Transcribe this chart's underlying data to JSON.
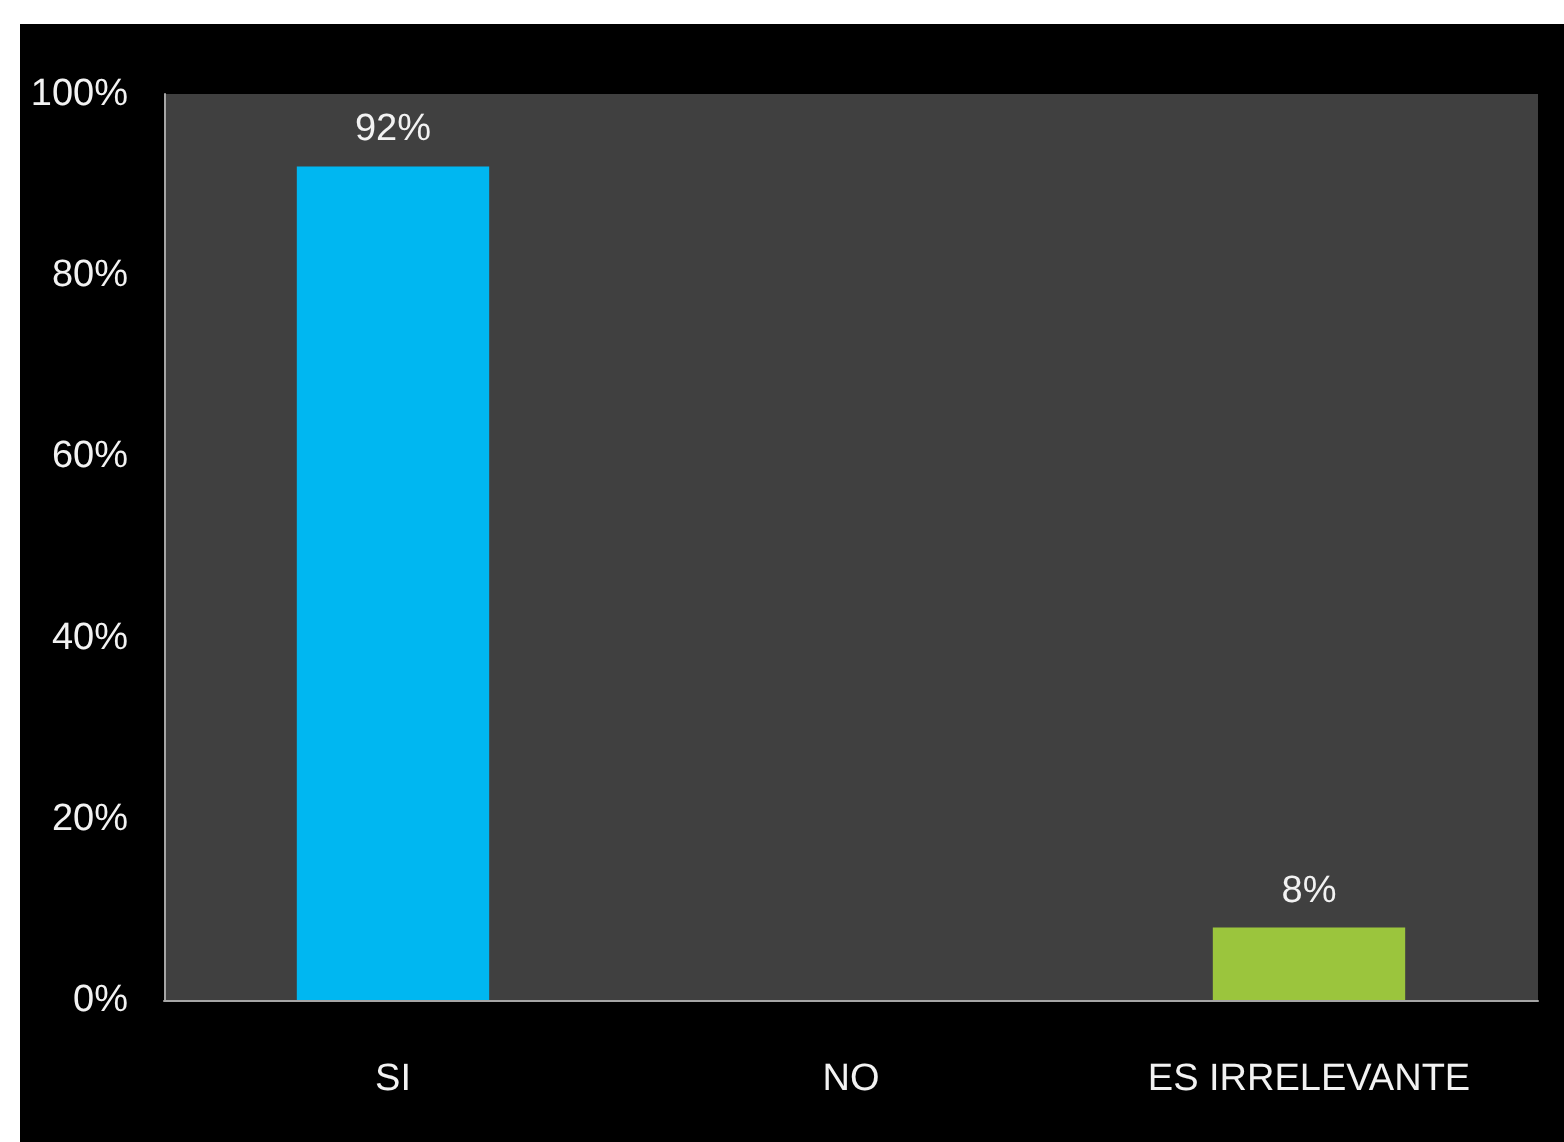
{
  "chart_data": {
    "type": "bar",
    "categories": [
      "SI",
      "NO",
      "ES IRRELEVANTE"
    ],
    "values": [
      92,
      0,
      8
    ],
    "colors": [
      "#00b7f1",
      null,
      "#9bc53d"
    ],
    "value_labels": [
      "92%",
      null,
      "8%"
    ],
    "ylim": [
      0,
      100
    ],
    "yticks": [
      {
        "value": 0,
        "label": "0%"
      },
      {
        "value": 20,
        "label": "20%"
      },
      {
        "value": 40,
        "label": "40%"
      },
      {
        "value": 60,
        "label": "60%"
      },
      {
        "value": 80,
        "label": "80%"
      },
      {
        "value": 100,
        "label": "100%"
      }
    ],
    "grid": false
  }
}
